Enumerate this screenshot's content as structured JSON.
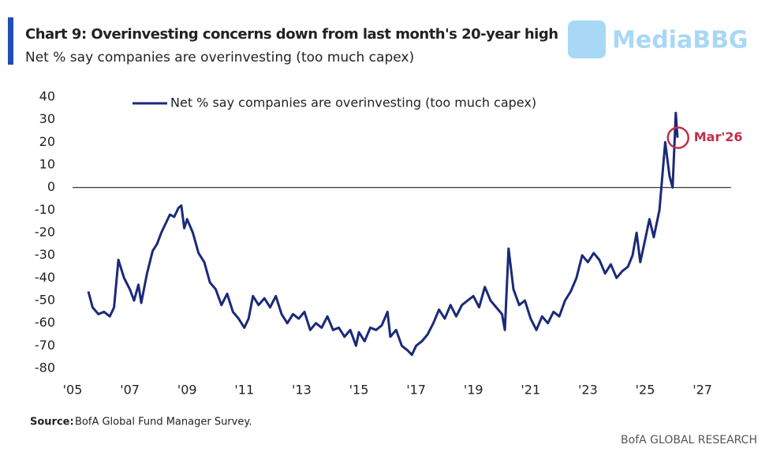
{
  "chart_data": {
    "type": "line",
    "title": "Chart 9: Overinvesting concerns down from last month's 20-year high",
    "subtitle": "Net % say companies are overinvesting (too much capex)",
    "source_label": "Source:",
    "source": "BofA Global Fund Manager Survey.",
    "footer": "BofA GLOBAL RESEARCH",
    "watermark": "MediaBBG",
    "annotation": {
      "text": "Mar'26",
      "x": 2026.15,
      "y": 22,
      "color": "#c0304a"
    },
    "legend_position": "top-left",
    "xlim": [
      2005,
      2028
    ],
    "ylim": [
      -80,
      40
    ],
    "xticks": [
      {
        "value": 2005,
        "label": "'05"
      },
      {
        "value": 2007,
        "label": "'07"
      },
      {
        "value": 2009,
        "label": "'09"
      },
      {
        "value": 2011,
        "label": "'11"
      },
      {
        "value": 2013,
        "label": "'13"
      },
      {
        "value": 2015,
        "label": "'15"
      },
      {
        "value": 2017,
        "label": "'17"
      },
      {
        "value": 2019,
        "label": "'19"
      },
      {
        "value": 2021,
        "label": "'21"
      },
      {
        "value": 2023,
        "label": "'23"
      },
      {
        "value": 2025,
        "label": "'25"
      },
      {
        "value": 2027,
        "label": "'27"
      }
    ],
    "yticks": [
      -80,
      -70,
      -60,
      -50,
      -40,
      -30,
      -20,
      -10,
      0,
      10,
      20,
      30,
      40
    ],
    "series": [
      {
        "name": "Net % say companies are overinvesting (too much capex)",
        "color": "#1b2a78",
        "x": [
          2005.55,
          2005.7,
          2005.9,
          2006.1,
          2006.3,
          2006.45,
          2006.6,
          2006.8,
          2007.0,
          2007.15,
          2007.3,
          2007.4,
          2007.6,
          2007.8,
          2007.95,
          2008.1,
          2008.25,
          2008.4,
          2008.55,
          2008.7,
          2008.8,
          2008.9,
          2009.0,
          2009.2,
          2009.4,
          2009.6,
          2009.8,
          2010.0,
          2010.2,
          2010.4,
          2010.6,
          2010.8,
          2011.0,
          2011.15,
          2011.3,
          2011.5,
          2011.7,
          2011.9,
          2012.1,
          2012.3,
          2012.5,
          2012.7,
          2012.9,
          2013.1,
          2013.3,
          2013.5,
          2013.7,
          2013.9,
          2014.1,
          2014.3,
          2014.5,
          2014.7,
          2014.9,
          2015.0,
          2015.2,
          2015.4,
          2015.6,
          2015.8,
          2016.0,
          2016.1,
          2016.3,
          2016.5,
          2016.7,
          2016.85,
          2017.0,
          2017.2,
          2017.4,
          2017.6,
          2017.8,
          2018.0,
          2018.2,
          2018.4,
          2018.6,
          2018.8,
          2019.0,
          2019.2,
          2019.4,
          2019.6,
          2019.8,
          2020.0,
          2020.1,
          2020.23,
          2020.4,
          2020.6,
          2020.8,
          2021.0,
          2021.2,
          2021.4,
          2021.6,
          2021.8,
          2022.0,
          2022.2,
          2022.4,
          2022.6,
          2022.8,
          2023.0,
          2023.2,
          2023.4,
          2023.6,
          2023.8,
          2024.0,
          2024.2,
          2024.4,
          2024.56,
          2024.7,
          2024.83,
          2025.0,
          2025.15,
          2025.3,
          2025.5,
          2025.7,
          2025.85,
          2025.96,
          2026.07,
          2026.13
        ],
        "values": [
          -46,
          -53,
          -56,
          -55,
          -57,
          -53,
          -32,
          -40,
          -45,
          -50,
          -43,
          -51,
          -38,
          -28,
          -25,
          -20,
          -16,
          -12,
          -13,
          -9,
          -8,
          -18,
          -14,
          -20,
          -29,
          -33,
          -42,
          -45,
          -52,
          -47,
          -55,
          -58,
          -62,
          -58,
          -48,
          -52,
          -49,
          -53,
          -48,
          -56,
          -60,
          -56,
          -58,
          -55,
          -63,
          -60,
          -62,
          -57,
          -63,
          -62,
          -66,
          -63,
          -70,
          -64,
          -68,
          -62,
          -63,
          -61,
          -55,
          -66,
          -63,
          -70,
          -72,
          -74,
          -70,
          -68,
          -65,
          -60,
          -54,
          -58,
          -52,
          -57,
          -52,
          -50,
          -48,
          -53,
          -44,
          -50,
          -53,
          -56,
          -63,
          -27,
          -45,
          -52,
          -50,
          -58,
          -63,
          -57,
          -60,
          -55,
          -57,
          -50,
          -46,
          -40,
          -30,
          -33,
          -29,
          -32,
          -38,
          -34,
          -40,
          -37,
          -35,
          -30,
          -20,
          -33,
          -23,
          -14,
          -22,
          -10,
          20,
          5,
          0,
          33,
          22
        ]
      }
    ]
  }
}
